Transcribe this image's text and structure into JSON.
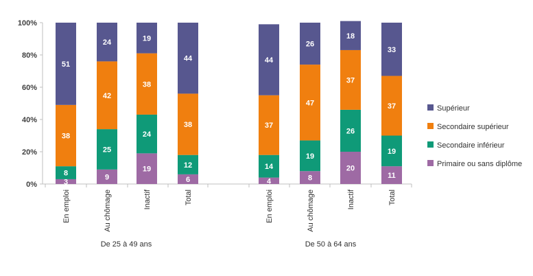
{
  "chart_data": {
    "type": "bar",
    "stacked": true,
    "percent": true,
    "ylim": [
      0,
      100
    ],
    "yticks": [
      "0%",
      "20%",
      "40%",
      "60%",
      "80%",
      "100%"
    ],
    "grid": false,
    "legend_position": "right",
    "groups": [
      {
        "label": "De 25 à 49 ans",
        "categories": [
          "En emploi",
          "Au chômage",
          "Inactif",
          "Total"
        ]
      },
      {
        "label": "De 50 à 64 ans",
        "categories": [
          "En emploi",
          "Au chômage",
          "Inactif",
          "Total"
        ]
      }
    ],
    "series": [
      {
        "name": "Primaire ou sans diplôme",
        "color": "#9e6aa4",
        "values": [
          3,
          9,
          19,
          6,
          4,
          8,
          20,
          11
        ]
      },
      {
        "name": "Secondaire inférieur",
        "color": "#0f9a78",
        "values": [
          8,
          25,
          24,
          12,
          14,
          19,
          26,
          19
        ]
      },
      {
        "name": "Secondaire supérieur",
        "color": "#f07f0f",
        "values": [
          38,
          42,
          38,
          38,
          37,
          47,
          37,
          37
        ]
      },
      {
        "name": "Supérieur",
        "color": "#57578f",
        "values": [
          51,
          24,
          19,
          44,
          44,
          26,
          18,
          33
        ]
      }
    ]
  }
}
